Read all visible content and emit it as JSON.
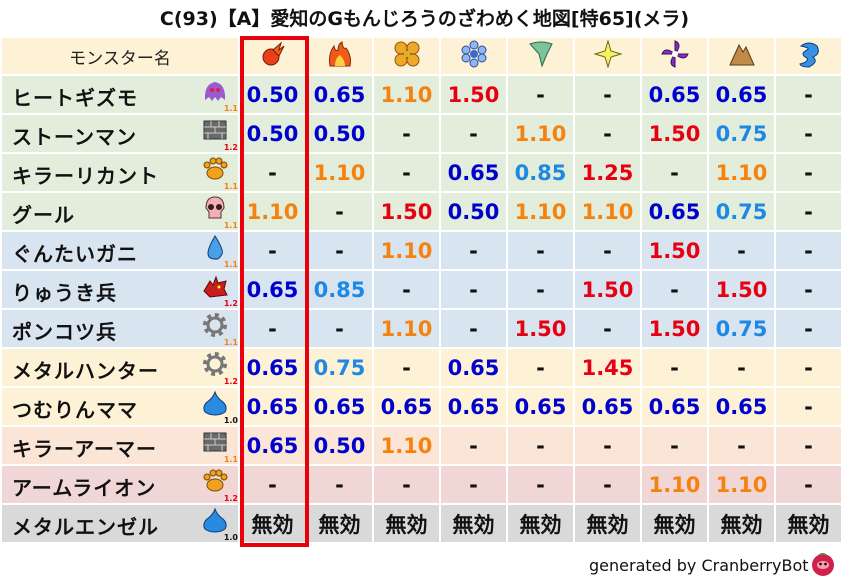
{
  "title": "C(93)【A】愛知のGもんじろうのざわめく地図[特65](メラ)",
  "header": {
    "name_label": "モンスター名",
    "highlighted_column": 0,
    "highlight_color": "#e8000b"
  },
  "columns": [
    {
      "icon": "mera-fireball-icon"
    },
    {
      "icon": "gira-flame-icon"
    },
    {
      "icon": "io-explosion-icon"
    },
    {
      "icon": "hyado-ice-icon"
    },
    {
      "icon": "bagi-tornado-icon"
    },
    {
      "icon": "dein-lightning-icon"
    },
    {
      "icon": "doruma-dark-icon"
    },
    {
      "icon": "jibaria-earth-icon"
    },
    {
      "icon": "wave-water-icon"
    }
  ],
  "value_colors": {
    "low": "#0000cc",
    "mid": "#1e88e5",
    "weak": "#f5820f",
    "high": "#e60012",
    "none": "#111111"
  },
  "rows": [
    {
      "name": "ヒートギズモ",
      "type_icon": "ghost-icon",
      "mult": "1.1",
      "bg": "#e2eedb",
      "values": [
        "0.50",
        "0.65",
        "1.10",
        "1.50",
        "-",
        "-",
        "0.65",
        "0.65",
        "-"
      ]
    },
    {
      "name": "ストーンマン",
      "type_icon": "brick-icon",
      "mult": "1.2",
      "bg": "#e2eedb",
      "values": [
        "0.50",
        "0.50",
        "-",
        "-",
        "1.10",
        "-",
        "1.50",
        "0.75",
        "-"
      ]
    },
    {
      "name": "キラーリカント",
      "type_icon": "paw-icon",
      "mult": "1.1",
      "bg": "#e2eedb",
      "values": [
        "-",
        "1.10",
        "-",
        "0.65",
        "0.85",
        "1.25",
        "-",
        "1.10",
        "-"
      ]
    },
    {
      "name": "グール",
      "type_icon": "skull-icon",
      "mult": "1.1",
      "bg": "#e2eedb",
      "values": [
        "1.10",
        "-",
        "1.50",
        "0.50",
        "1.10",
        "1.10",
        "0.65",
        "0.75",
        "-"
      ]
    },
    {
      "name": "ぐんたいガニ",
      "type_icon": "water-drop-icon",
      "mult": "1.1",
      "bg": "#d9e4f1",
      "values": [
        "-",
        "-",
        "1.10",
        "-",
        "-",
        "-",
        "1.50",
        "-",
        "-"
      ]
    },
    {
      "name": "りゅうき兵",
      "type_icon": "dragon-icon",
      "mult": "1.2",
      "bg": "#d9e4f1",
      "values": [
        "0.65",
        "0.85",
        "-",
        "-",
        "-",
        "1.50",
        "-",
        "1.50",
        "-"
      ]
    },
    {
      "name": "ポンコツ兵",
      "type_icon": "gear-icon",
      "mult": "1.1",
      "bg": "#d9e4f1",
      "values": [
        "-",
        "-",
        "1.10",
        "-",
        "1.50",
        "-",
        "1.50",
        "0.75",
        "-"
      ]
    },
    {
      "name": "メタルハンター",
      "type_icon": "gear-icon",
      "mult": "1.2",
      "bg": "#fdf2d6",
      "values": [
        "0.65",
        "0.75",
        "-",
        "0.65",
        "-",
        "1.45",
        "-",
        "-",
        "-"
      ]
    },
    {
      "name": "つむりんママ",
      "type_icon": "slime-icon",
      "mult": "1.0",
      "bg": "#fdf2d6",
      "values": [
        "0.65",
        "0.65",
        "0.65",
        "0.65",
        "0.65",
        "0.65",
        "0.65",
        "0.65",
        "-"
      ]
    },
    {
      "name": "キラーアーマー",
      "type_icon": "brick-icon",
      "mult": "1.1",
      "bg": "#fbe5d6",
      "values": [
        "0.65",
        "0.50",
        "1.10",
        "-",
        "-",
        "-",
        "-",
        "-",
        "-"
      ]
    },
    {
      "name": "アームライオン",
      "type_icon": "paw-icon",
      "mult": "1.2",
      "bg": "#f1d6d6",
      "values": [
        "-",
        "-",
        "-",
        "-",
        "-",
        "-",
        "1.10",
        "1.10",
        "-"
      ]
    },
    {
      "name": "メタルエンゼル",
      "type_icon": "slime-icon",
      "mult": "1.0",
      "bg": "#d9d9d9",
      "values": [
        "無効",
        "無効",
        "無効",
        "無効",
        "無効",
        "無効",
        "無効",
        "無効",
        "無効"
      ]
    }
  ],
  "footer": {
    "text": "generated by CranberryBot",
    "bot_icon": "cranberry-bot-icon"
  }
}
